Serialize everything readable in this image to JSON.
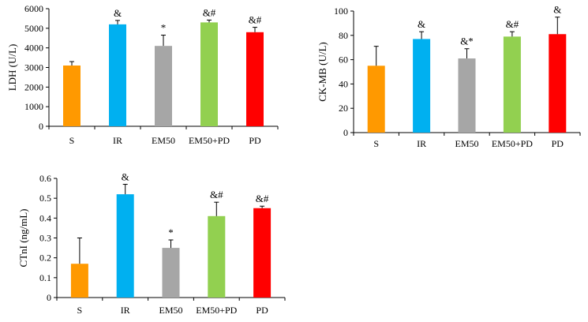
{
  "chart_data": [
    {
      "type": "bar",
      "title": "",
      "xlabel": "",
      "ylabel": "LDH (U/L)",
      "ylim": [
        0,
        6000
      ],
      "yticks": [
        0,
        1000,
        2000,
        3000,
        4000,
        5000,
        6000
      ],
      "categories": [
        "S",
        "IR",
        "EM50",
        "EM50+PD",
        "PD"
      ],
      "values": [
        3100,
        5200,
        4100,
        5300,
        4800
      ],
      "errors": [
        200,
        200,
        550,
        120,
        250
      ],
      "annotations": [
        "",
        "&",
        "*",
        "&#",
        "&#"
      ],
      "colors": [
        "#FF9900",
        "#00B0F0",
        "#A6A6A6",
        "#92D050",
        "#FF0000"
      ],
      "grid": false
    },
    {
      "type": "bar",
      "title": "",
      "xlabel": "",
      "ylabel": "CK-MB (U/L)",
      "ylim": [
        0,
        100
      ],
      "yticks": [
        0,
        20,
        40,
        60,
        80,
        100
      ],
      "categories": [
        "S",
        "IR",
        "EM50",
        "EM50+PD",
        "PD"
      ],
      "values": [
        55,
        77,
        61,
        79,
        81
      ],
      "errors": [
        16,
        6,
        8,
        4,
        14
      ],
      "annotations": [
        "",
        "&",
        "&*",
        "&#",
        "&"
      ],
      "colors": [
        "#FF9900",
        "#00B0F0",
        "#A6A6A6",
        "#92D050",
        "#FF0000"
      ],
      "grid": false
    },
    {
      "type": "bar",
      "title": "",
      "xlabel": "",
      "ylabel": "CTnI (ng/mL)",
      "ylim": [
        0,
        0.6
      ],
      "yticks": [
        "0",
        "0.1",
        "0.2",
        "0.3",
        "0.4",
        "0.5",
        "0.6"
      ],
      "categories": [
        "S",
        "IR",
        "EM50",
        "EM50+PD",
        "PD"
      ],
      "values": [
        0.17,
        0.52,
        0.25,
        0.41,
        0.45
      ],
      "errors": [
        0.13,
        0.05,
        0.04,
        0.07,
        0.01
      ],
      "annotations": [
        "",
        "&",
        "*",
        "&#",
        "&#"
      ],
      "colors": [
        "#FF9900",
        "#00B0F0",
        "#A6A6A6",
        "#92D050",
        "#FF0000"
      ],
      "grid": false
    }
  ]
}
